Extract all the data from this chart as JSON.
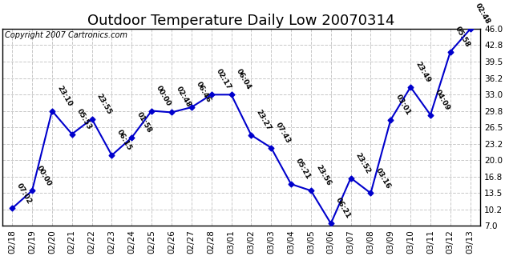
{
  "title": "Outdoor Temperature Daily Low 20070314",
  "copyright": "Copyright 2007 Cartronics.com",
  "background_color": "#ffffff",
  "line_color": "#0000cc",
  "point_color": "#0000cc",
  "grid_color": "#c8c8c8",
  "ylim": [
    7.0,
    46.0
  ],
  "yticks": [
    7.0,
    10.2,
    13.5,
    16.8,
    20.0,
    23.2,
    26.5,
    29.8,
    33.0,
    36.2,
    39.5,
    42.8,
    46.0
  ],
  "x_labels": [
    "02/18",
    "02/19",
    "02/20",
    "02/21",
    "02/22",
    "02/23",
    "02/24",
    "02/25",
    "02/26",
    "02/27",
    "02/28",
    "03/01",
    "03/02",
    "03/03",
    "03/04",
    "03/05",
    "03/06",
    "03/07",
    "03/08",
    "03/09",
    "03/10",
    "03/11",
    "03/12",
    "03/13"
  ],
  "y_values": [
    10.5,
    14.0,
    29.8,
    25.2,
    28.2,
    21.0,
    24.5,
    29.8,
    29.5,
    30.5,
    33.0,
    33.0,
    25.0,
    22.5,
    15.3,
    14.0,
    7.5,
    16.5,
    13.5,
    28.0,
    34.5,
    29.0,
    41.5,
    46.0
  ],
  "time_labels": [
    "07:02",
    "00:00",
    "23:10",
    "05:53",
    "23:55",
    "06:15",
    "01:58",
    "00:00",
    "02:48",
    "06:46",
    "02:17",
    "06:04",
    "23:27",
    "07:43",
    "05:21",
    "23:56",
    "06:21",
    "23:52",
    "03:16",
    "03:01",
    "23:49",
    "04:09",
    "05:58",
    "02:48"
  ],
  "title_fontsize": 13,
  "annot_fontsize": 6.5,
  "tick_fontsize": 7.5,
  "copyright_fontsize": 7
}
